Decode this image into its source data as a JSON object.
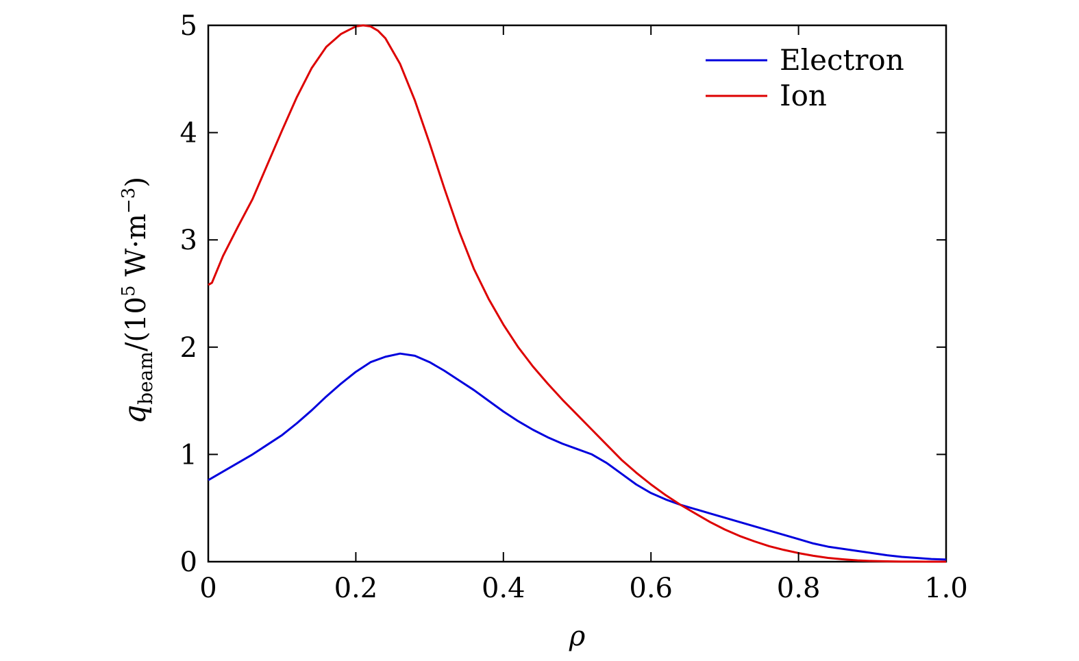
{
  "chart_data": {
    "type": "line",
    "title": "",
    "xlabel": "ρ",
    "ylabel": {
      "symbol": "q",
      "subscript": "beam",
      "unit_prefix": "/(10",
      "unit_exp": "5",
      "unit_mid": " W·m",
      "unit_exp2": "−3",
      "unit_suffix": ")"
    },
    "xlim": [
      0,
      1.0
    ],
    "ylim": [
      0,
      5
    ],
    "xticks": [
      0,
      0.2,
      0.4,
      0.6,
      0.8,
      1.0
    ],
    "xtick_labels": [
      "0",
      "0.2",
      "0.4",
      "0.6",
      "0.8",
      "1.0"
    ],
    "yticks": [
      0,
      1,
      2,
      3,
      4,
      5
    ],
    "ytick_labels": [
      "0",
      "1",
      "2",
      "3",
      "4",
      "5"
    ],
    "grid": false,
    "legend_position": "top-right",
    "series": [
      {
        "name": "Electron",
        "color": "#0000dd",
        "x": [
          0,
          0.02,
          0.04,
          0.06,
          0.08,
          0.1,
          0.12,
          0.14,
          0.16,
          0.18,
          0.2,
          0.22,
          0.24,
          0.26,
          0.28,
          0.3,
          0.32,
          0.34,
          0.36,
          0.38,
          0.4,
          0.42,
          0.44,
          0.46,
          0.48,
          0.5,
          0.52,
          0.54,
          0.56,
          0.58,
          0.6,
          0.62,
          0.64,
          0.66,
          0.68,
          0.7,
          0.72,
          0.74,
          0.76,
          0.78,
          0.8,
          0.82,
          0.84,
          0.86,
          0.88,
          0.9,
          0.92,
          0.94,
          0.96,
          0.98,
          1.0
        ],
        "y": [
          0.76,
          0.84,
          0.92,
          1.0,
          1.09,
          1.18,
          1.29,
          1.41,
          1.54,
          1.66,
          1.77,
          1.86,
          1.91,
          1.94,
          1.92,
          1.86,
          1.78,
          1.69,
          1.6,
          1.5,
          1.4,
          1.31,
          1.23,
          1.16,
          1.1,
          1.05,
          1.0,
          0.92,
          0.82,
          0.72,
          0.64,
          0.58,
          0.53,
          0.49,
          0.45,
          0.41,
          0.37,
          0.33,
          0.29,
          0.25,
          0.21,
          0.17,
          0.14,
          0.12,
          0.1,
          0.08,
          0.06,
          0.045,
          0.035,
          0.025,
          0.02
        ]
      },
      {
        "name": "Ion",
        "color": "#dd0000",
        "x": [
          0,
          0.005,
          0.02,
          0.04,
          0.06,
          0.08,
          0.1,
          0.12,
          0.14,
          0.16,
          0.18,
          0.2,
          0.21,
          0.22,
          0.23,
          0.24,
          0.26,
          0.28,
          0.3,
          0.32,
          0.34,
          0.36,
          0.38,
          0.4,
          0.42,
          0.44,
          0.46,
          0.48,
          0.5,
          0.52,
          0.54,
          0.56,
          0.58,
          0.6,
          0.62,
          0.64,
          0.66,
          0.68,
          0.7,
          0.72,
          0.74,
          0.76,
          0.78,
          0.8,
          0.82,
          0.84,
          0.86,
          0.88,
          0.9,
          0.92,
          0.94,
          0.96,
          0.98,
          1.0
        ],
        "y": [
          2.58,
          2.6,
          2.85,
          3.12,
          3.38,
          3.7,
          4.02,
          4.33,
          4.6,
          4.8,
          4.92,
          4.99,
          5.0,
          4.99,
          4.95,
          4.88,
          4.64,
          4.3,
          3.9,
          3.48,
          3.08,
          2.73,
          2.45,
          2.21,
          2.0,
          1.82,
          1.66,
          1.51,
          1.37,
          1.23,
          1.09,
          0.95,
          0.83,
          0.72,
          0.62,
          0.53,
          0.45,
          0.37,
          0.3,
          0.24,
          0.19,
          0.145,
          0.11,
          0.08,
          0.055,
          0.035,
          0.022,
          0.012,
          0.006,
          0.003,
          0.001,
          0.0005,
          0.0002,
          0.0
        ]
      }
    ]
  }
}
